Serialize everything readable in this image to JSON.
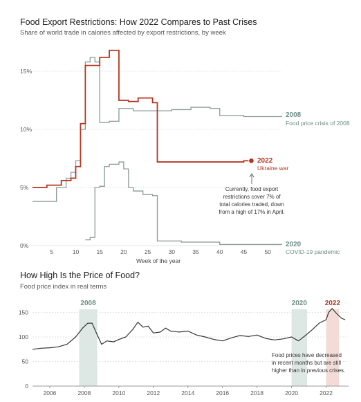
{
  "chart1": {
    "title": "Food Export Restrictions: How 2022 Compares to Past Crises",
    "subtitle": "Share of world trade in calories affected by export restrictions, by week",
    "xlabel": "Week of the year",
    "y_ticks": [
      "0%",
      "5%",
      "10%",
      "15%"
    ],
    "x_ticks": [
      "5",
      "10",
      "15",
      "20",
      "25",
      "30",
      "35",
      "40",
      "45",
      "50"
    ],
    "labels": {
      "y2008": "2008",
      "y2008_sub": "Food price crisis of 2008",
      "y2022": "2022",
      "y2022_sub": "Ukraine war",
      "y2020": "2020",
      "y2020_sub": "COVID-19 pandemic"
    },
    "annotation": [
      "Currently, food export",
      "restrictions cover 7% of",
      "total calories traded, down",
      "from a high of 17% in April."
    ]
  },
  "chart2": {
    "title": "How High Is the Price of Food?",
    "subtitle": "Food price index in real terms",
    "y_ticks": [
      "0",
      "50",
      "100",
      "150"
    ],
    "x_ticks": [
      "2006",
      "2008",
      "2010",
      "2012",
      "2014",
      "2016",
      "2018",
      "2020",
      "2022"
    ],
    "bands": [
      "2008",
      "2020",
      "2022"
    ],
    "annotation": [
      "Food prices have decreased",
      "in recent months but are still",
      "higher than in previous crises."
    ]
  },
  "colors": {
    "y2008": "#8a9a95",
    "y2022": "#b5361f",
    "y2020": "#8a9a95",
    "band_teal": "#dde7e3",
    "band_red": "#f3dcd8",
    "line": "#333333",
    "label_teal": "#6b8d84",
    "label_red": "#b5361f"
  },
  "chart_data": [
    {
      "type": "line",
      "title": "Food Export Restrictions: How 2022 Compares to Past Crises",
      "xlabel": "Week of the year",
      "ylabel": "",
      "xlim": [
        1,
        53
      ],
      "ylim": [
        0,
        17
      ],
      "series": [
        {
          "name": "2022",
          "step": true,
          "x": [
            1,
            4,
            7,
            9,
            10,
            11,
            12,
            15,
            17,
            19,
            21,
            23,
            26,
            27,
            30,
            35,
            40,
            45,
            46
          ],
          "y": [
            5.0,
            5.2,
            5.6,
            5.8,
            6.8,
            10.5,
            15.5,
            16.2,
            16.8,
            12.5,
            12.4,
            12.7,
            12.3,
            7.2,
            7.2,
            7.2,
            7.2,
            7.3,
            7.3
          ]
        },
        {
          "name": "2008",
          "step": true,
          "x": [
            1,
            5,
            6,
            8,
            9,
            10,
            11,
            12,
            13,
            14,
            15,
            17,
            19,
            22,
            27,
            30,
            34,
            38,
            40,
            45,
            53
          ],
          "y": [
            3.8,
            3.8,
            5.0,
            5.8,
            6.3,
            7.3,
            10.0,
            15.8,
            16.2,
            15.8,
            10.6,
            10.7,
            11.8,
            11.6,
            11.6,
            11.7,
            11.9,
            11.8,
            11.2,
            11.1,
            11.1
          ]
        },
        {
          "name": "2020",
          "step": true,
          "x": [
            12,
            13,
            14,
            15,
            16,
            17,
            19,
            20,
            21,
            22,
            24,
            26,
            27,
            32,
            40,
            53
          ],
          "y": [
            0.5,
            0.7,
            5.0,
            5.1,
            6.8,
            7.0,
            7.2,
            6.6,
            5.0,
            4.7,
            4.4,
            4.3,
            0.4,
            0.3,
            0.1,
            0.1
          ]
        }
      ]
    },
    {
      "type": "line",
      "title": "How High Is the Price of Food?",
      "xlabel": "",
      "ylabel": "",
      "xlim": [
        2005,
        2023.3
      ],
      "ylim": [
        0,
        160
      ],
      "bands": [
        {
          "label": "2008",
          "from": 2007.7,
          "to": 2008.75
        },
        {
          "label": "2020",
          "from": 2020.0,
          "to": 2020.9
        },
        {
          "label": "2022",
          "from": 2022.0,
          "to": 2022.75
        }
      ],
      "series": [
        {
          "name": "Food price index",
          "x": [
            2005.0,
            2005.5,
            2006.0,
            2006.5,
            2007.0,
            2007.5,
            2007.9,
            2008.2,
            2008.45,
            2008.7,
            2009.0,
            2009.3,
            2009.7,
            2010.0,
            2010.4,
            2010.8,
            2011.1,
            2011.4,
            2011.7,
            2012.0,
            2012.4,
            2012.7,
            2013.0,
            2013.5,
            2014.0,
            2014.5,
            2015.0,
            2015.5,
            2016.0,
            2016.5,
            2017.0,
            2017.5,
            2018.0,
            2018.5,
            2019.0,
            2019.5,
            2020.0,
            2020.4,
            2020.8,
            2021.2,
            2021.6,
            2022.0,
            2022.15,
            2022.35,
            2022.6,
            2022.9,
            2023.1
          ],
          "y": [
            75,
            77,
            78,
            80,
            85,
            100,
            118,
            128,
            128,
            108,
            85,
            92,
            90,
            95,
            100,
            115,
            130,
            120,
            122,
            108,
            110,
            118,
            112,
            110,
            112,
            104,
            100,
            95,
            92,
            98,
            103,
            101,
            104,
            97,
            94,
            96,
            100,
            92,
            103,
            115,
            128,
            135,
            150,
            158,
            148,
            138,
            135
          ]
        }
      ]
    }
  ]
}
